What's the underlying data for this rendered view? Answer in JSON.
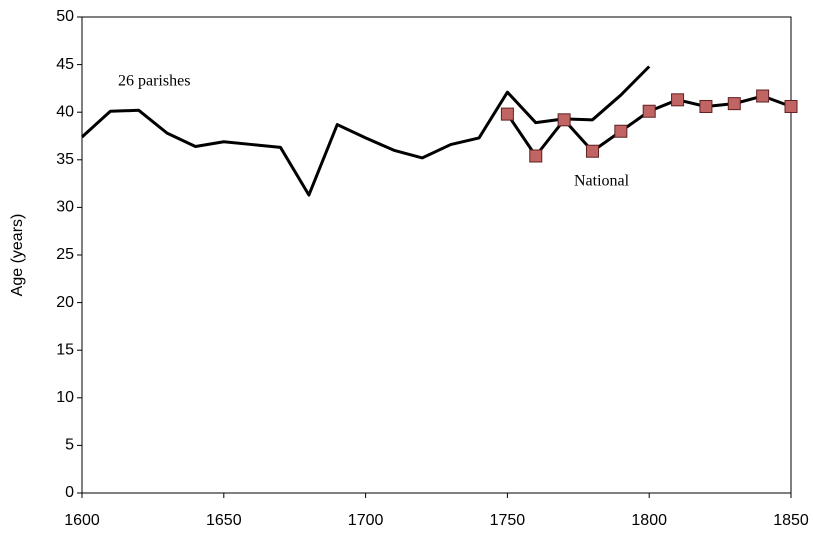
{
  "chart_data": {
    "type": "line",
    "y_label": "Age (years)",
    "x": [
      1600,
      1610,
      1620,
      1630,
      1640,
      1650,
      1660,
      1670,
      1680,
      1690,
      1700,
      1710,
      1720,
      1730,
      1740,
      1750,
      1760,
      1770,
      1780,
      1790,
      1800,
      1810,
      1820,
      1830,
      1840,
      1850
    ],
    "series": [
      {
        "name": "26 parishes",
        "color": "#000000",
        "marker": false,
        "values": [
          37.4,
          40.1,
          40.2,
          37.8,
          36.4,
          36.9,
          36.6,
          36.3,
          31.3,
          38.7,
          37.3,
          36.0,
          35.2,
          36.6,
          37.3,
          42.1,
          38.9,
          39.3,
          39.2,
          41.8,
          44.8,
          null,
          null,
          null,
          null,
          null
        ]
      },
      {
        "name": "National",
        "color": "#000000",
        "marker": true,
        "marker_color": "#c06464",
        "values": [
          null,
          null,
          null,
          null,
          null,
          null,
          null,
          null,
          null,
          null,
          null,
          null,
          null,
          null,
          null,
          39.8,
          35.4,
          39.2,
          35.9,
          38.0,
          40.1,
          41.3,
          40.6,
          40.9,
          41.7,
          40.6
        ]
      }
    ],
    "xlim": [
      1600,
      1850
    ],
    "xticks": [
      1600,
      1650,
      1700,
      1750,
      1800,
      1850
    ],
    "ylim": [
      0,
      50
    ],
    "yticks": [
      0,
      5,
      10,
      15,
      20,
      25,
      30,
      35,
      40,
      45,
      50
    ],
    "grid": false
  }
}
